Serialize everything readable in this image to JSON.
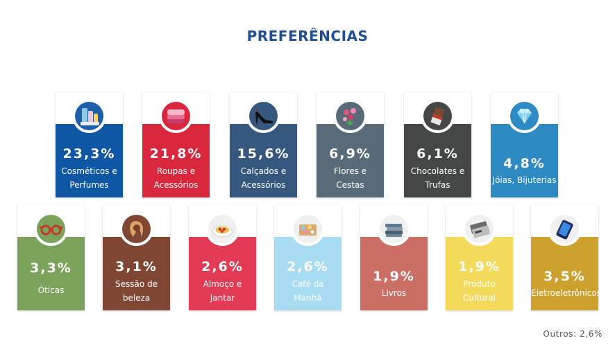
{
  "title": "PREFERÊNCIAS",
  "footer": "Outros: 2,6%",
  "chart_data": {
    "type": "table",
    "title": "PREFERÊNCIAS",
    "unit": "%",
    "categories": [
      [
        "Cosméticos e",
        "Perfumes"
      ],
      [
        "Roupas e",
        "Acessórios"
      ],
      [
        "Calçados e",
        "Acessórios"
      ],
      [
        "Flores e",
        "Cestas"
      ],
      [
        "Chocolates e",
        "Trufas"
      ],
      [
        "Jóias, Bijuterias"
      ],
      [
        "Óticas"
      ],
      [
        "Sessão de",
        "beleza"
      ],
      [
        "Almoço e",
        "Jantar"
      ],
      [
        "Café da",
        "Manhã"
      ],
      [
        "Livros"
      ],
      [
        "Produto",
        "Cultural"
      ],
      [
        "Eletroeletrônicos"
      ]
    ],
    "value_labels": [
      "23,3%",
      "21,8%",
      "15,6%",
      "6,9%",
      "6,1%",
      "4,8%",
      "3,3%",
      "3,1%",
      "2,6%",
      "2,6%",
      "1,9%",
      "1,9%",
      "3,5%"
    ],
    "values": [
      23.3,
      21.8,
      15.6,
      6.9,
      6.1,
      4.8,
      3.3,
      3.1,
      2.6,
      2.6,
      1.9,
      1.9,
      3.5
    ],
    "colors": [
      "#0f56a5",
      "#d9283d",
      "#36587e",
      "#596b79",
      "#444746",
      "#2d8ac3",
      "#7ba35c",
      "#804634",
      "#e33a55",
      "#a7dcf3",
      "#cb6f66",
      "#f4da5a",
      "#cda12e"
    ],
    "icons": [
      "cosmetics-icon",
      "clothes-icon",
      "high-heel-icon",
      "flowers-icon",
      "chocolate-icon",
      "diamond-icon",
      "glasses-icon",
      "beauty-icon",
      "pasta-icon",
      "breakfast-icon",
      "books-icon",
      "ticket-icon",
      "smartphone-icon"
    ],
    "other": {
      "label": "Outros",
      "value": 2.6
    }
  }
}
